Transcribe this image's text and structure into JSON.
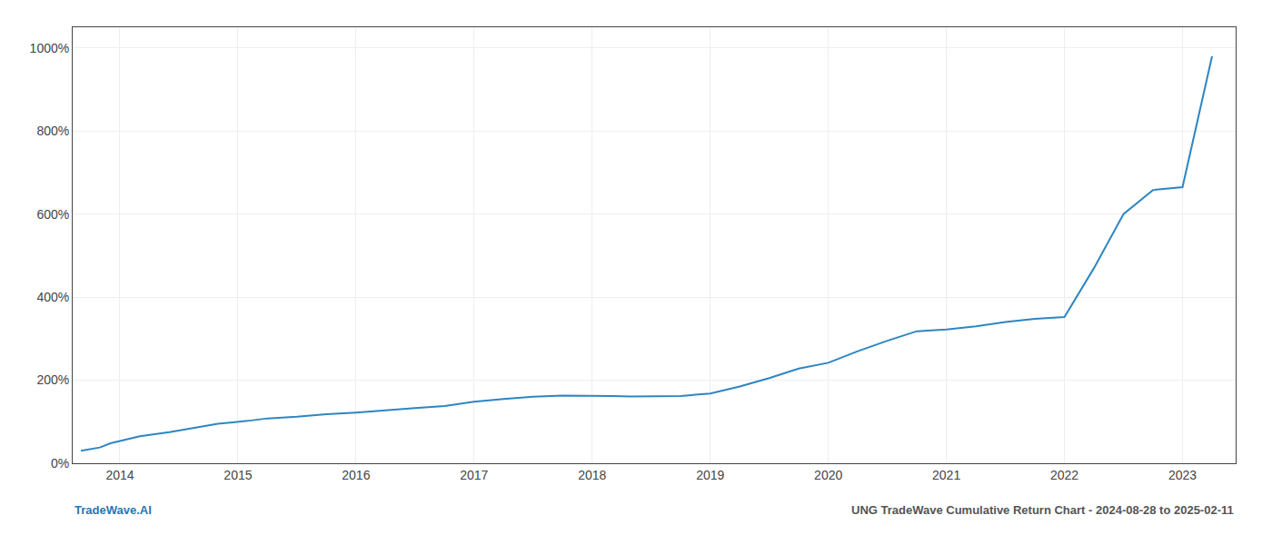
{
  "chart_data": {
    "type": "line",
    "x": [
      2013.67,
      2013.83,
      2013.92,
      2014.17,
      2014.42,
      2014.67,
      2014.83,
      2015.08,
      2015.25,
      2015.5,
      2015.75,
      2016.0,
      2016.25,
      2016.5,
      2016.75,
      2017.0,
      2017.25,
      2017.5,
      2017.75,
      2018.0,
      2018.17,
      2018.33,
      2018.58,
      2018.75,
      2019.0,
      2019.25,
      2019.5,
      2019.75,
      2020.0,
      2020.25,
      2020.5,
      2020.75,
      2021.0,
      2021.25,
      2021.5,
      2021.75,
      2022.0,
      2022.25,
      2022.5,
      2022.75,
      2023.0,
      2023.25
    ],
    "values": [
      30,
      38,
      48,
      65,
      75,
      88,
      95,
      102,
      108,
      112,
      118,
      122,
      128,
      133,
      138,
      148,
      155,
      160,
      163,
      163,
      162,
      161,
      161,
      162,
      168,
      185,
      205,
      228,
      242,
      270,
      295,
      318,
      322,
      330,
      340,
      348,
      352,
      470,
      600,
      658,
      665,
      980
    ],
    "color": "#2E86C1",
    "xlim": [
      2013.6,
      2023.45
    ],
    "xticks": [
      2014,
      2015,
      2016,
      2017,
      2018,
      2019,
      2020,
      2021,
      2022,
      2023
    ],
    "ylim": [
      0,
      1050
    ],
    "yticks": [
      {
        "value": 0,
        "label": "0%"
      },
      {
        "value": 200,
        "label": "200%"
      },
      {
        "value": 400,
        "label": "400%"
      },
      {
        "value": 600,
        "label": "600%"
      },
      {
        "value": 800,
        "label": "800%"
      },
      {
        "value": 1000,
        "label": "1000%"
      }
    ],
    "grid": true,
    "annotations": [
      {
        "text": "TradeWave.AI",
        "color": "#2777b4"
      },
      {
        "text": "UNG TradeWave Cumulative Return Chart - 2024-08-28 to 2025-02-11",
        "color": "#555555"
      }
    ]
  }
}
